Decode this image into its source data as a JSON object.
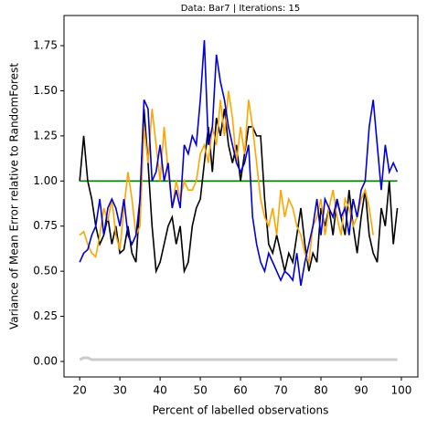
{
  "chart_data": {
    "type": "line",
    "title": "Data: Bar7 | Iterations: 15",
    "xlabel": "Percent of labelled observations",
    "ylabel": "Variance of Mean Error relative to RandomForest",
    "x": [
      20,
      21,
      22,
      23,
      24,
      25,
      26,
      27,
      28,
      29,
      30,
      31,
      32,
      33,
      34,
      35,
      36,
      37,
      38,
      39,
      40,
      41,
      42,
      43,
      44,
      45,
      46,
      47,
      48,
      49,
      50,
      51,
      52,
      53,
      54,
      55,
      56,
      57,
      58,
      59,
      60,
      61,
      62,
      63,
      64,
      65,
      66,
      67,
      68,
      69,
      70,
      71,
      72,
      73,
      74,
      75,
      76,
      77,
      78,
      79,
      80,
      81,
      82,
      83,
      84,
      85,
      86,
      87,
      88,
      89,
      90,
      91,
      92,
      93,
      94,
      95,
      96,
      97,
      98,
      99
    ],
    "series": [
      {
        "color": "#cccccc",
        "values": [
          0.01,
          0.02,
          0.02,
          0.01,
          0.01,
          0.01,
          0.01,
          0.01,
          0.01,
          0.01,
          0.01,
          0.01,
          0.01,
          0.01,
          0.01,
          0.01,
          0.01,
          0.01,
          0.01,
          0.01,
          0.01,
          0.01,
          0.01,
          0.01,
          0.01,
          0.01,
          0.01,
          0.01,
          0.01,
          0.01,
          0.01,
          0.01,
          0.01,
          0.01,
          0.01,
          0.01,
          0.01,
          0.01,
          0.01,
          0.01,
          0.01,
          0.01,
          0.01,
          0.01,
          0.01,
          0.01,
          0.01,
          0.01,
          0.01,
          0.01,
          0.01,
          0.01,
          0.01,
          0.01,
          0.01,
          0.01,
          0.01,
          0.01,
          0.01,
          0.01,
          0.01,
          0.01,
          0.01,
          0.01,
          0.01,
          0.01,
          0.01,
          0.01,
          0.01,
          0.01,
          0.01,
          0.01,
          0.01,
          0.01,
          0.01,
          0.01,
          0.01,
          0.01,
          0.01,
          0.01
        ]
      },
      {
        "color": "#008000",
        "values": [
          1,
          1,
          1,
          1,
          1,
          1,
          1,
          1,
          1,
          1,
          1,
          1,
          1,
          1,
          1,
          1,
          1,
          1,
          1,
          1,
          1,
          1,
          1,
          1,
          1,
          1,
          1,
          1,
          1,
          1,
          1,
          1,
          1,
          1,
          1,
          1,
          1,
          1,
          1,
          1,
          1,
          1,
          1,
          1,
          1,
          1,
          1,
          1,
          1,
          1,
          1,
          1,
          1,
          1,
          1,
          1,
          1,
          1,
          1,
          1,
          1,
          1,
          1,
          1,
          1,
          1,
          1,
          1,
          1,
          1,
          1,
          1,
          1,
          1,
          1,
          1,
          1,
          1,
          1,
          1
        ]
      },
      {
        "color": "#000000",
        "values": [
          1.0,
          1.25,
          1.0,
          0.9,
          0.75,
          0.65,
          0.7,
          0.8,
          0.65,
          0.75,
          0.6,
          0.62,
          0.75,
          0.6,
          0.55,
          0.9,
          1.4,
          1.1,
          0.75,
          0.5,
          0.55,
          0.65,
          0.75,
          0.8,
          0.65,
          0.75,
          0.5,
          0.55,
          0.75,
          0.85,
          0.9,
          1.1,
          1.3,
          1.05,
          1.35,
          1.25,
          1.4,
          1.2,
          1.1,
          1.2,
          1.0,
          1.15,
          1.3,
          1.3,
          1.25,
          1.25,
          0.9,
          0.65,
          0.6,
          0.7,
          0.6,
          0.5,
          0.6,
          0.55,
          0.7,
          0.85,
          0.65,
          0.5,
          0.6,
          0.55,
          0.85,
          0.75,
          0.85,
          0.7,
          0.9,
          0.8,
          0.7,
          0.95,
          0.75,
          0.6,
          0.8,
          0.95,
          0.7,
          0.6,
          0.55,
          0.85,
          0.75,
          1.0,
          0.65,
          0.85
        ]
      },
      {
        "color": "#ffa500",
        "values": [
          0.7,
          0.72,
          0.65,
          0.6,
          0.58,
          0.7,
          0.85,
          0.78,
          0.9,
          0.7,
          0.62,
          0.85,
          1.05,
          0.9,
          0.7,
          0.75,
          1.3,
          1.1,
          1.4,
          1.2,
          1.0,
          1.3,
          1.05,
          0.85,
          1.0,
          0.9,
          1.0,
          0.95,
          0.95,
          1.0,
          1.15,
          1.2,
          1.1,
          1.3,
          1.2,
          1.45,
          1.25,
          1.5,
          1.35,
          1.1,
          1.3,
          1.15,
          1.45,
          1.3,
          1.1,
          0.9,
          0.8,
          0.75,
          0.85,
          0.7,
          0.95,
          0.8,
          0.9,
          0.85,
          0.75,
          0.7,
          0.6,
          0.55,
          0.75,
          0.8,
          0.9,
          0.7,
          0.85,
          0.95,
          0.8,
          0.7,
          0.9,
          0.85,
          0.75,
          0.8,
          0.9,
          0.95,
          0.85,
          0.7,
          null,
          null,
          null,
          null,
          null,
          null
        ]
      },
      {
        "color": "#0000dd",
        "values": [
          0.55,
          0.6,
          0.62,
          0.7,
          0.75,
          0.9,
          0.7,
          0.85,
          0.9,
          0.85,
          0.75,
          0.9,
          0.7,
          0.65,
          0.7,
          0.9,
          1.45,
          1.4,
          1.0,
          1.05,
          1.2,
          1.0,
          1.1,
          0.85,
          0.95,
          0.85,
          1.2,
          1.15,
          1.25,
          1.2,
          1.45,
          1.78,
          1.2,
          1.3,
          1.7,
          1.55,
          1.45,
          1.3,
          1.2,
          1.1,
          1.05,
          1.1,
          1.2,
          0.8,
          0.65,
          0.55,
          0.5,
          0.6,
          0.55,
          0.5,
          0.45,
          0.5,
          0.48,
          0.45,
          0.6,
          0.42,
          0.55,
          0.65,
          0.75,
          0.9,
          0.7,
          0.9,
          0.85,
          0.8,
          0.9,
          0.8,
          0.85,
          0.7,
          0.9,
          0.8,
          0.95,
          1.0,
          1.3,
          1.45,
          1.2,
          0.95,
          1.2,
          1.05,
          1.1,
          1.05
        ]
      }
    ],
    "xlim": [
      16.1,
      104.1
    ],
    "ylim": [
      -0.086,
      1.917
    ],
    "xticks": [
      20,
      30,
      40,
      50,
      60,
      70,
      80,
      90,
      100
    ],
    "yticks": [
      {
        "value": 0,
        "label": "0.00"
      },
      {
        "value": 0.25,
        "label": "0.25"
      },
      {
        "value": 0.5,
        "label": "0.50"
      },
      {
        "value": 0.75,
        "label": "0.75"
      },
      {
        "value": 1,
        "label": "1.00"
      },
      {
        "value": 1.25,
        "label": "1.25"
      },
      {
        "value": 1.5,
        "label": "1.50"
      },
      {
        "value": 1.75,
        "label": "1.75"
      }
    ]
  }
}
